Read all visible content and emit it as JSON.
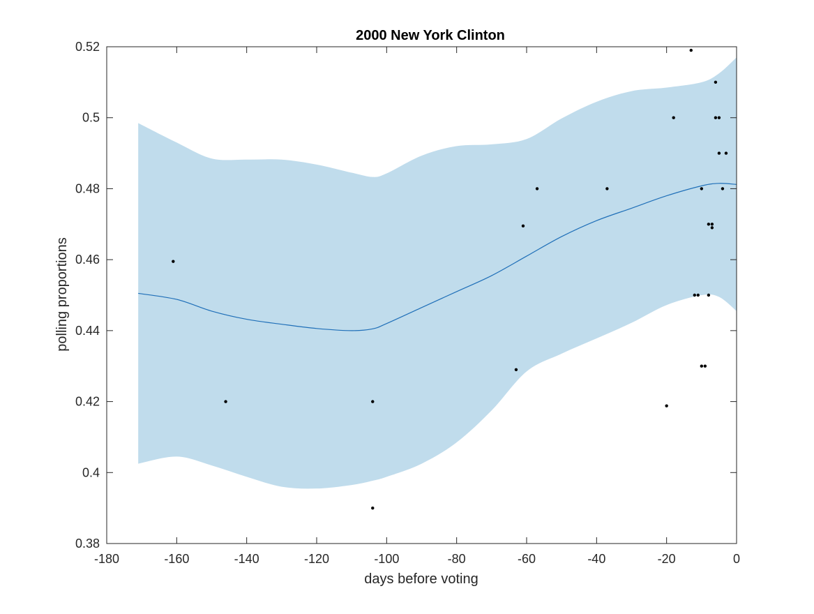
{
  "chart_data": {
    "type": "scatter",
    "title": "2000 New York Clinton",
    "xlabel": "days before voting",
    "ylabel": "polling proportions",
    "xlim": [
      -180,
      0
    ],
    "ylim": [
      0.38,
      0.52
    ],
    "xticks": [
      -180,
      -160,
      -140,
      -120,
      -100,
      -80,
      -60,
      -40,
      -20,
      0
    ],
    "xtick_labels": [
      "-180",
      "-160",
      "-140",
      "-120",
      "-100",
      "-80",
      "-60",
      "-40",
      "-20",
      "0"
    ],
    "yticks": [
      0.38,
      0.4,
      0.42,
      0.44,
      0.46,
      0.48,
      0.5,
      0.52
    ],
    "ytick_labels": [
      "0.38",
      "0.4",
      "0.42",
      "0.44",
      "0.46",
      "0.48",
      "0.5",
      "0.52"
    ],
    "grid": false,
    "colors": {
      "band": "#c0dcec",
      "line": "#1f6fb8",
      "points": "#000000",
      "axes": "#262626"
    },
    "points": {
      "x": [
        -161,
        -146,
        -104,
        -104,
        -63,
        -61,
        -57,
        -37,
        -20,
        -18,
        -13,
        -12,
        -11,
        -10,
        -10,
        -9,
        -8,
        -8,
        -7,
        -7,
        -6,
        -6,
        -5,
        -5,
        -4,
        -3
      ],
      "y": [
        0.4595,
        0.42,
        0.42,
        0.39,
        0.429,
        0.4695,
        0.48,
        0.48,
        0.4188,
        0.5,
        0.519,
        0.45,
        0.45,
        0.48,
        0.43,
        0.43,
        0.45,
        0.47,
        0.47,
        0.469,
        0.51,
        0.5,
        0.5,
        0.49,
        0.48,
        0.49
      ]
    },
    "trend": {
      "x": [
        -171,
        -160,
        -150,
        -140,
        -130,
        -120,
        -110,
        -104,
        -100,
        -90,
        -80,
        -70,
        -60,
        -50,
        -40,
        -30,
        -20,
        -10,
        -5,
        0
      ],
      "y": [
        0.4505,
        0.4488,
        0.4455,
        0.4432,
        0.4418,
        0.4406,
        0.44,
        0.4405,
        0.442,
        0.4465,
        0.451,
        0.4555,
        0.461,
        0.4665,
        0.471,
        0.4745,
        0.478,
        0.4808,
        0.4815,
        0.4812
      ]
    },
    "band": {
      "x": [
        -171,
        -160,
        -150,
        -140,
        -130,
        -120,
        -110,
        -104,
        -100,
        -90,
        -80,
        -70,
        -60,
        -50,
        -40,
        -30,
        -20,
        -10,
        -5,
        0
      ],
      "upper": [
        0.4985,
        0.493,
        0.4885,
        0.4882,
        0.4882,
        0.4868,
        0.4845,
        0.4833,
        0.4843,
        0.4893,
        0.492,
        0.4925,
        0.494,
        0.4998,
        0.5045,
        0.5075,
        0.5085,
        0.51,
        0.5125,
        0.517
      ],
      "lower": [
        0.4025,
        0.4045,
        0.402,
        0.3988,
        0.396,
        0.3955,
        0.3965,
        0.3977,
        0.3988,
        0.4025,
        0.4085,
        0.4175,
        0.4285,
        0.4335,
        0.4378,
        0.4422,
        0.4472,
        0.45,
        0.4495,
        0.4455
      ]
    }
  }
}
